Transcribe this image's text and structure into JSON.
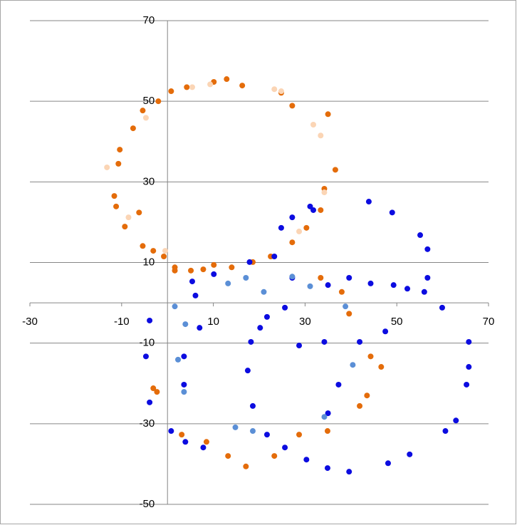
{
  "chart_data": {
    "type": "scatter",
    "xlim": [
      -30,
      70
    ],
    "xticks": [
      -30,
      -10,
      10,
      30,
      50,
      70
    ],
    "ylim": [
      -50,
      70
    ],
    "yticks": [
      -50,
      -30,
      -10,
      10,
      30,
      50,
      70
    ],
    "grid": true,
    "series": [
      {
        "color": "#e46c0a",
        "x": [
          12.9,
          10.1,
          16.3,
          4.2,
          0.8,
          -2,
          -5.4,
          -7.5,
          -10.4,
          -10.7,
          -11.6,
          -11.2,
          -6.2,
          -9.3,
          -5.4,
          -3.1,
          -0.8,
          1.6,
          7.8,
          10.1,
          14,
          18.6,
          22.5,
          27.2,
          30.3,
          33.4,
          34.2,
          36.6,
          35,
          27.2,
          24.8,
          33.4,
          38,
          39.6,
          44.3,
          46.6,
          43.5,
          41.9,
          34.9,
          28.7,
          23.3,
          17.1,
          13.2,
          8.5,
          3.1,
          -2.3,
          -3.1,
          1.6,
          5.1
        ],
        "values": [
          55.5,
          54.8,
          53.9,
          53.5,
          52.5,
          50,
          47.7,
          43.3,
          38,
          34.5,
          26.5,
          23.9,
          22.4,
          18.9,
          14.1,
          12.9,
          11.5,
          8.8,
          8.3,
          9.4,
          8.8,
          10.1,
          11.5,
          15,
          18.6,
          23,
          28.3,
          33,
          46.8,
          48.9,
          52.1,
          6.2,
          2.7,
          -2.7,
          -13.3,
          -15.9,
          -23,
          -25.6,
          -31.8,
          -32.7,
          -38,
          -40.6,
          -38,
          -34.5,
          -32.7,
          -22.1,
          -21.2,
          8,
          8
        ]
      },
      {
        "color": "#fbd5b5",
        "x": [
          23.3,
          9.3,
          5.4,
          -4.7,
          -13.2,
          -8.5,
          -0.5,
          28.7,
          34.2,
          33.4,
          31.8,
          24.8
        ],
        "values": [
          53,
          54.2,
          53.5,
          45.9,
          33.6,
          21.2,
          12.9,
          17.7,
          27.4,
          41.5,
          44.2,
          52.5
        ]
      },
      {
        "color": "#0c0ce0",
        "x": [
          43.9,
          49,
          55.1,
          56.7,
          56.7,
          56,
          59.9,
          65.7,
          65.7,
          65.2,
          62.9,
          60.6,
          52.8,
          48.1,
          39.6,
          34.9,
          30.3,
          25.6,
          21.7,
          18.6,
          17.5,
          18.2,
          21.7,
          25.6,
          27.2,
          23.3,
          24.8,
          27.2,
          31.1,
          31.8,
          35,
          39.6,
          44.3,
          49.3,
          52.3,
          47.5,
          41.9,
          37.3,
          35,
          34.2,
          28.7,
          20.2,
          5.4,
          6.1,
          7,
          3.6,
          3.6,
          0.8,
          3.9,
          7.8,
          -3.9,
          -4.7,
          -3.9,
          10.1,
          17.9
        ],
        "values": [
          25.1,
          22.4,
          16.8,
          13.3,
          6.2,
          2.7,
          -1.2,
          -9.7,
          -15.9,
          -20.3,
          -29.2,
          -31.8,
          -37.6,
          -39.8,
          -41.9,
          -41,
          -38.9,
          -35.9,
          -32.7,
          -25.6,
          -16.8,
          -9.7,
          -3.5,
          -1.2,
          6.2,
          11.5,
          18.6,
          21.2,
          23.9,
          23,
          4.4,
          6.2,
          4.8,
          4.4,
          3.5,
          -7.1,
          -9.7,
          -20.3,
          -27.4,
          -9.7,
          -10.6,
          -6.2,
          5.3,
          1.8,
          -6.2,
          -13.3,
          -20.3,
          -31.8,
          -34.5,
          -35.9,
          -4.4,
          -13.3,
          -24.7,
          7.1,
          10.1
        ]
      },
      {
        "color": "#5b8fd6",
        "x": [
          13.2,
          17.1,
          21,
          27.2,
          31.1,
          38.8,
          40.4,
          34.2,
          14.8,
          18.6,
          3.6,
          2.3,
          3.9,
          1.6
        ],
        "values": [
          4.8,
          6.2,
          2.7,
          6.5,
          4.1,
          -0.9,
          -15.4,
          -28.3,
          -30.9,
          -31.8,
          -22.1,
          -14.1,
          -5.3,
          -0.9
        ]
      }
    ]
  }
}
